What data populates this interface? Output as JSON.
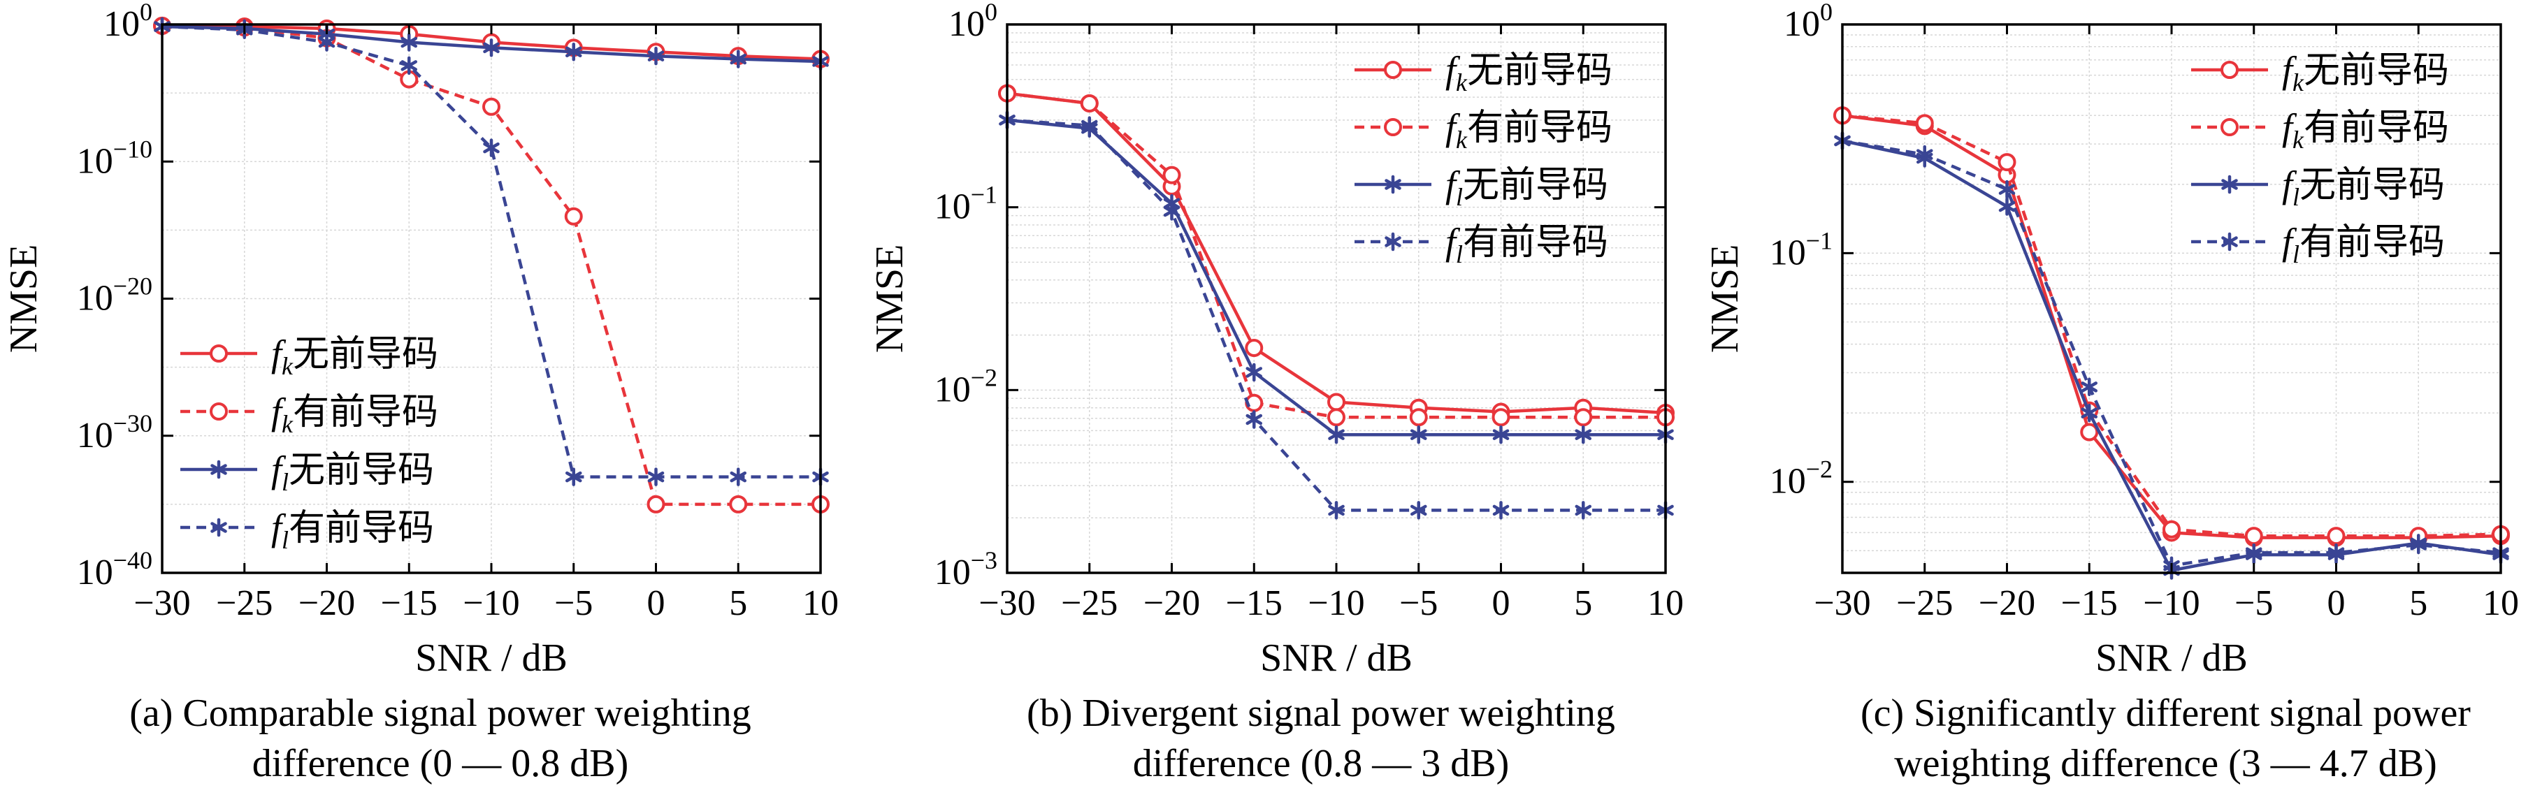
{
  "charts": [
    {
      "type": "line",
      "title": "(a) Comparable signal power weighting difference (0 — 0.8 dB)",
      "caption_lines": [
        "(a) Comparable signal power weighting",
        "difference (0 — 0.8 dB)"
      ],
      "xlabel": "SNR / dB",
      "ylabel": "NMSE",
      "yscale": "log",
      "xlim": [
        -30,
        10
      ],
      "ylim": [
        1e-40,
        1
      ],
      "x": [
        -30,
        -25,
        -20,
        -15,
        -10,
        -5,
        0,
        5,
        10
      ],
      "x_ticks": [
        "−30",
        "−25",
        "−20",
        "−15",
        "−10",
        "−5",
        "0",
        "5",
        "10"
      ],
      "y_ticks": [
        {
          "base": "10",
          "exp": "0",
          "value": 1
        },
        {
          "base": "10",
          "exp": "−10",
          "value": 1e-10
        },
        {
          "base": "10",
          "exp": "−20",
          "value": 1e-20
        },
        {
          "base": "10",
          "exp": "−30",
          "value": 1e-30
        },
        {
          "base": "10",
          "exp": "−40",
          "value": 1e-40
        }
      ],
      "legend_position": "bottom-left",
      "series": [
        {
          "f": "f",
          "sub": "k",
          "suffix": "无前导码",
          "color": "#e8353b",
          "dash": "solid",
          "marker": "circle",
          "values": [
            0.8,
            0.7,
            0.5,
            0.2,
            0.05,
            0.02,
            0.01,
            0.005,
            0.003
          ]
        },
        {
          "f": "f",
          "sub": "k",
          "suffix": "有前导码",
          "color": "#e8353b",
          "dash": "dashed",
          "marker": "circle",
          "values": [
            0.8,
            0.6,
            0.1,
            0.0001,
            1e-06,
            1e-14,
            1e-35,
            1e-35,
            1e-35
          ]
        },
        {
          "f": "f",
          "sub": "l",
          "suffix": "无前导码",
          "color": "#3a4594",
          "dash": "solid",
          "marker": "star",
          "values": [
            0.7,
            0.5,
            0.2,
            0.05,
            0.02,
            0.01,
            0.005,
            0.003,
            0.002
          ]
        },
        {
          "f": "f",
          "sub": "l",
          "suffix": "有前导码",
          "color": "#3a4594",
          "dash": "dashed",
          "marker": "star",
          "values": [
            0.7,
            0.4,
            0.05,
            0.001,
            1e-09,
            1e-33,
            1e-33,
            1e-33,
            1e-33
          ]
        }
      ]
    },
    {
      "type": "line",
      "title": "(b) Divergent signal power weighting difference (0.8 — 3 dB)",
      "caption_lines": [
        "(b) Divergent signal power weighting",
        "difference (0.8 — 3 dB)"
      ],
      "xlabel": "SNR / dB",
      "ylabel": "NMSE",
      "yscale": "log",
      "xlim": [
        -30,
        10
      ],
      "ylim": [
        0.001,
        1
      ],
      "x": [
        -30,
        -25,
        -20,
        -15,
        -10,
        -5,
        0,
        5,
        10
      ],
      "x_ticks": [
        "−30",
        "−25",
        "−20",
        "−15",
        "−10",
        "−5",
        "0",
        "5",
        "10"
      ],
      "y_ticks": [
        {
          "base": "10",
          "exp": "0",
          "value": 1
        },
        {
          "base": "10",
          "exp": "−1",
          "value": 0.1
        },
        {
          "base": "10",
          "exp": "−2",
          "value": 0.01
        },
        {
          "base": "10",
          "exp": "−3",
          "value": 0.001
        }
      ],
      "legend_position": "top-right",
      "series": [
        {
          "f": "f",
          "sub": "k",
          "suffix": "无前导码",
          "color": "#e8353b",
          "dash": "solid",
          "marker": "circle",
          "values": [
            0.42,
            0.37,
            0.13,
            0.017,
            0.0086,
            0.008,
            0.0076,
            0.008,
            0.0075
          ]
        },
        {
          "f": "f",
          "sub": "k",
          "suffix": "有前导码",
          "color": "#e8353b",
          "dash": "dashed",
          "marker": "circle",
          "values": [
            0.42,
            0.37,
            0.15,
            0.0085,
            0.0071,
            0.0071,
            0.0071,
            0.0071,
            0.0071
          ]
        },
        {
          "f": "f",
          "sub": "l",
          "suffix": "无前导码",
          "color": "#3a4594",
          "dash": "solid",
          "marker": "star",
          "values": [
            0.3,
            0.27,
            0.105,
            0.0125,
            0.0057,
            0.0057,
            0.0057,
            0.0057,
            0.0057
          ]
        },
        {
          "f": "f",
          "sub": "l",
          "suffix": "有前导码",
          "color": "#3a4594",
          "dash": "dashed",
          "marker": "star",
          "values": [
            0.3,
            0.28,
            0.095,
            0.0069,
            0.0022,
            0.0022,
            0.0022,
            0.0022,
            0.0022
          ]
        }
      ]
    },
    {
      "type": "line",
      "title": "(c) Significantly different signal power weighting difference (3 — 4.7 dB)",
      "caption_lines": [
        "(c) Significantly different signal power",
        "weighting difference (3 — 4.7 dB)"
      ],
      "xlabel": "SNR / dB",
      "ylabel": "NMSE",
      "yscale": "log",
      "xlim": [
        -30,
        10
      ],
      "ylim": [
        0.004,
        1
      ],
      "x": [
        -30,
        -25,
        -20,
        -15,
        -10,
        -5,
        0,
        5,
        10
      ],
      "x_ticks": [
        "−30",
        "−25",
        "−20",
        "−15",
        "−10",
        "−5",
        "0",
        "5",
        "10"
      ],
      "y_ticks": [
        {
          "base": "10",
          "exp": "0",
          "value": 1
        },
        {
          "base": "10",
          "exp": "−1",
          "value": 0.1
        },
        {
          "base": "10",
          "exp": "−2",
          "value": 0.01
        }
      ],
      "legend_position": "top-right",
      "series": [
        {
          "f": "f",
          "sub": "k",
          "suffix": "无前导码",
          "color": "#e8353b",
          "dash": "solid",
          "marker": "circle",
          "values": [
            0.4,
            0.36,
            0.22,
            0.0165,
            0.006,
            0.0057,
            0.0057,
            0.0057,
            0.0058
          ]
        },
        {
          "f": "f",
          "sub": "k",
          "suffix": "有前导码",
          "color": "#e8353b",
          "dash": "dashed",
          "marker": "circle",
          "values": [
            0.4,
            0.37,
            0.25,
            0.0205,
            0.0062,
            0.0058,
            0.0058,
            0.0058,
            0.0059
          ]
        },
        {
          "f": "f",
          "sub": "l",
          "suffix": "无前导码",
          "color": "#3a4594",
          "dash": "solid",
          "marker": "star",
          "values": [
            0.31,
            0.26,
            0.16,
            0.02,
            0.0041,
            0.0048,
            0.0048,
            0.0054,
            0.0048
          ]
        },
        {
          "f": "f",
          "sub": "l",
          "suffix": "有前导码",
          "color": "#3a4594",
          "dash": "dashed",
          "marker": "star",
          "values": [
            0.31,
            0.27,
            0.19,
            0.026,
            0.0043,
            0.0049,
            0.0049,
            0.0053,
            0.0049
          ]
        }
      ]
    }
  ]
}
